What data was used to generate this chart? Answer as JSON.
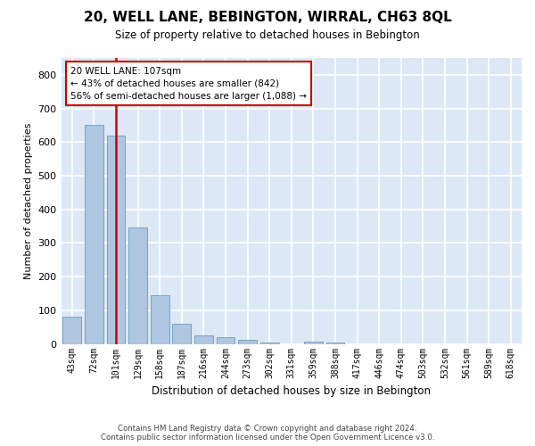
{
  "title": "20, WELL LANE, BEBINGTON, WIRRAL, CH63 8QL",
  "subtitle": "Size of property relative to detached houses in Bebington",
  "xlabel": "Distribution of detached houses by size in Bebington",
  "ylabel": "Number of detached properties",
  "categories": [
    "43sqm",
    "72sqm",
    "101sqm",
    "129sqm",
    "158sqm",
    "187sqm",
    "216sqm",
    "244sqm",
    "273sqm",
    "302sqm",
    "331sqm",
    "359sqm",
    "388sqm",
    "417sqm",
    "446sqm",
    "474sqm",
    "503sqm",
    "532sqm",
    "561sqm",
    "589sqm",
    "618sqm"
  ],
  "values": [
    80,
    650,
    620,
    345,
    145,
    60,
    25,
    20,
    12,
    5,
    0,
    8,
    5,
    0,
    0,
    0,
    0,
    0,
    0,
    0,
    0
  ],
  "bar_color": "#aec6e0",
  "bar_edge_color": "#6a9cc0",
  "highlight_color": "#cc0000",
  "annotation_text": "20 WELL LANE: 107sqm\n← 43% of detached houses are smaller (842)\n56% of semi-detached houses are larger (1,088) →",
  "annotation_box_color": "#ffffff",
  "annotation_box_edge": "#cc0000",
  "ylim": [
    0,
    850
  ],
  "yticks": [
    0,
    100,
    200,
    300,
    400,
    500,
    600,
    700,
    800
  ],
  "plot_bg_color": "#dce8f5",
  "grid_color": "#ffffff",
  "footer_line1": "Contains HM Land Registry data © Crown copyright and database right 2024.",
  "footer_line2": "Contains public sector information licensed under the Open Government Licence v3.0."
}
